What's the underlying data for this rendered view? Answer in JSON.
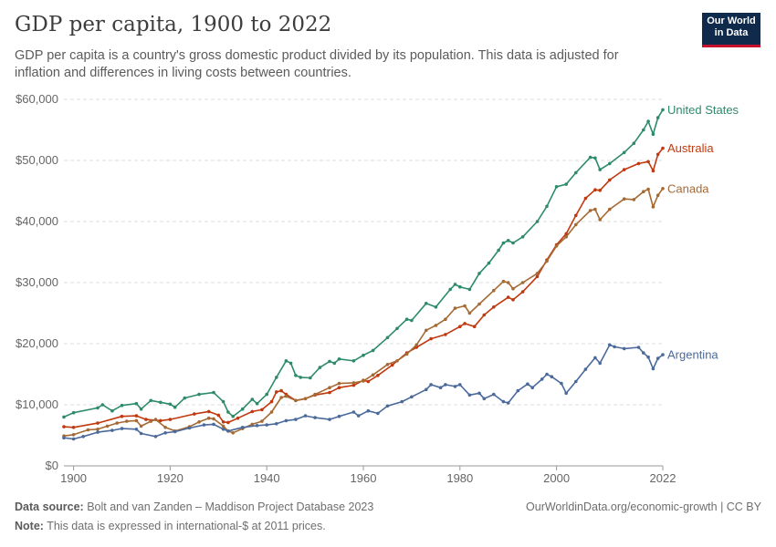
{
  "header": {
    "title": "GDP per capita, 1900 to 2022",
    "subtitle": "GDP per capita is a country's gross domestic product divided by its population. This data is adjusted for inflation and differences in living costs between countries."
  },
  "logo": {
    "line1": "Our World",
    "line2": "in Data"
  },
  "footer": {
    "source_label": "Data source:",
    "source_text": "Bolt and van Zanden – Maddison Project Database 2023",
    "note_label": "Note:",
    "note_text": "This data is expressed in international-$ at 2011 prices.",
    "right_text": "OurWorldinData.org/economic-growth | CC BY"
  },
  "chart_data": {
    "type": "line",
    "title": "GDP per capita, 1900 to 2022",
    "xlim": [
      1898,
      2022
    ],
    "ylim": [
      0,
      60000
    ],
    "x_ticks": [
      1900,
      1920,
      1940,
      1960,
      1980,
      2000,
      2022
    ],
    "y_ticks": [
      0,
      10000,
      20000,
      30000,
      40000,
      50000,
      60000
    ],
    "y_tick_labels": [
      "$0",
      "$10,000",
      "$20,000",
      "$30,000",
      "$40,000",
      "$50,000",
      "$60,000"
    ],
    "grid": "horizontal dashed",
    "legend": "labels at line ends (right)",
    "series": [
      {
        "name": "United States",
        "color": "#2e8b6a",
        "points": [
          [
            1898,
            8000
          ],
          [
            1900,
            8700
          ],
          [
            1905,
            9500
          ],
          [
            1906,
            10000
          ],
          [
            1908,
            9000
          ],
          [
            1910,
            9900
          ],
          [
            1913,
            10200
          ],
          [
            1914,
            9300
          ],
          [
            1916,
            10700
          ],
          [
            1918,
            10400
          ],
          [
            1920,
            10100
          ],
          [
            1921,
            9600
          ],
          [
            1923,
            11100
          ],
          [
            1926,
            11700
          ],
          [
            1929,
            12000
          ],
          [
            1931,
            10500
          ],
          [
            1932,
            8800
          ],
          [
            1933,
            8100
          ],
          [
            1935,
            9300
          ],
          [
            1937,
            10900
          ],
          [
            1938,
            10200
          ],
          [
            1940,
            11700
          ],
          [
            1942,
            14500
          ],
          [
            1944,
            17200
          ],
          [
            1945,
            16800
          ],
          [
            1946,
            14800
          ],
          [
            1947,
            14500
          ],
          [
            1949,
            14400
          ],
          [
            1951,
            16100
          ],
          [
            1953,
            17100
          ],
          [
            1954,
            16800
          ],
          [
            1955,
            17500
          ],
          [
            1958,
            17200
          ],
          [
            1960,
            18100
          ],
          [
            1962,
            18900
          ],
          [
            1965,
            21000
          ],
          [
            1967,
            22500
          ],
          [
            1969,
            24000
          ],
          [
            1970,
            23800
          ],
          [
            1973,
            26600
          ],
          [
            1975,
            26000
          ],
          [
            1978,
            28900
          ],
          [
            1979,
            29700
          ],
          [
            1980,
            29300
          ],
          [
            1982,
            28900
          ],
          [
            1984,
            31500
          ],
          [
            1986,
            33200
          ],
          [
            1988,
            35300
          ],
          [
            1989,
            36500
          ],
          [
            1990,
            36900
          ],
          [
            1991,
            36500
          ],
          [
            1993,
            37500
          ],
          [
            1996,
            40000
          ],
          [
            1998,
            42500
          ],
          [
            2000,
            45700
          ],
          [
            2002,
            46100
          ],
          [
            2004,
            48000
          ],
          [
            2007,
            50500
          ],
          [
            2008,
            50400
          ],
          [
            2009,
            48500
          ],
          [
            2011,
            49500
          ],
          [
            2014,
            51300
          ],
          [
            2016,
            52800
          ],
          [
            2018,
            55000
          ],
          [
            2019,
            56400
          ],
          [
            2020,
            54300
          ],
          [
            2021,
            57000
          ],
          [
            2022,
            58300
          ]
        ]
      },
      {
        "name": "Australia",
        "color": "#c0390f",
        "points": [
          [
            1898,
            6400
          ],
          [
            1900,
            6300
          ],
          [
            1905,
            7000
          ],
          [
            1910,
            8100
          ],
          [
            1913,
            8200
          ],
          [
            1915,
            7600
          ],
          [
            1918,
            7400
          ],
          [
            1920,
            7600
          ],
          [
            1925,
            8500
          ],
          [
            1928,
            8900
          ],
          [
            1930,
            8300
          ],
          [
            1931,
            7200
          ],
          [
            1932,
            7100
          ],
          [
            1934,
            7800
          ],
          [
            1937,
            8900
          ],
          [
            1939,
            9200
          ],
          [
            1941,
            10500
          ],
          [
            1942,
            12100
          ],
          [
            1943,
            12300
          ],
          [
            1944,
            11700
          ],
          [
            1946,
            10700
          ],
          [
            1948,
            11000
          ],
          [
            1950,
            11600
          ],
          [
            1953,
            12000
          ],
          [
            1955,
            12800
          ],
          [
            1958,
            13200
          ],
          [
            1960,
            14000
          ],
          [
            1961,
            13800
          ],
          [
            1963,
            14800
          ],
          [
            1966,
            16500
          ],
          [
            1969,
            18500
          ],
          [
            1971,
            19400
          ],
          [
            1974,
            20800
          ],
          [
            1977,
            21500
          ],
          [
            1980,
            22800
          ],
          [
            1981,
            23300
          ],
          [
            1983,
            22800
          ],
          [
            1985,
            24700
          ],
          [
            1987,
            26000
          ],
          [
            1990,
            27600
          ],
          [
            1991,
            27200
          ],
          [
            1993,
            28500
          ],
          [
            1996,
            31000
          ],
          [
            1998,
            33700
          ],
          [
            2000,
            36200
          ],
          [
            2002,
            38000
          ],
          [
            2004,
            41000
          ],
          [
            2006,
            43800
          ],
          [
            2008,
            45200
          ],
          [
            2009,
            45100
          ],
          [
            2011,
            46800
          ],
          [
            2014,
            48500
          ],
          [
            2017,
            49500
          ],
          [
            2019,
            49800
          ],
          [
            2020,
            48300
          ],
          [
            2021,
            51000
          ],
          [
            2022,
            52000
          ]
        ]
      },
      {
        "name": "Canada",
        "color": "#a56a34",
        "points": [
          [
            1898,
            4900
          ],
          [
            1900,
            5100
          ],
          [
            1903,
            5900
          ],
          [
            1905,
            6000
          ],
          [
            1907,
            6500
          ],
          [
            1909,
            7000
          ],
          [
            1911,
            7300
          ],
          [
            1913,
            7400
          ],
          [
            1914,
            6500
          ],
          [
            1916,
            7300
          ],
          [
            1917,
            7600
          ],
          [
            1919,
            6300
          ],
          [
            1921,
            5700
          ],
          [
            1924,
            6400
          ],
          [
            1926,
            7200
          ],
          [
            1928,
            7800
          ],
          [
            1929,
            7700
          ],
          [
            1931,
            6500
          ],
          [
            1932,
            5700
          ],
          [
            1933,
            5400
          ],
          [
            1935,
            6100
          ],
          [
            1937,
            6800
          ],
          [
            1939,
            7300
          ],
          [
            1941,
            8800
          ],
          [
            1943,
            11200
          ],
          [
            1944,
            11400
          ],
          [
            1946,
            10700
          ],
          [
            1948,
            11000
          ],
          [
            1950,
            11700
          ],
          [
            1953,
            12800
          ],
          [
            1955,
            13500
          ],
          [
            1958,
            13600
          ],
          [
            1960,
            13900
          ],
          [
            1962,
            14900
          ],
          [
            1965,
            16600
          ],
          [
            1967,
            17200
          ],
          [
            1969,
            18300
          ],
          [
            1971,
            19800
          ],
          [
            1973,
            22200
          ],
          [
            1975,
            23000
          ],
          [
            1977,
            24000
          ],
          [
            1979,
            25800
          ],
          [
            1981,
            26200
          ],
          [
            1982,
            25000
          ],
          [
            1984,
            26500
          ],
          [
            1987,
            28700
          ],
          [
            1989,
            30200
          ],
          [
            1990,
            30000
          ],
          [
            1991,
            29000
          ],
          [
            1993,
            30000
          ],
          [
            1996,
            31500
          ],
          [
            1998,
            33500
          ],
          [
            2000,
            36000
          ],
          [
            2002,
            37500
          ],
          [
            2004,
            39500
          ],
          [
            2007,
            41800
          ],
          [
            2008,
            42000
          ],
          [
            2009,
            40300
          ],
          [
            2011,
            42000
          ],
          [
            2014,
            43700
          ],
          [
            2016,
            43600
          ],
          [
            2018,
            44900
          ],
          [
            2019,
            45300
          ],
          [
            2020,
            42400
          ],
          [
            2021,
            44300
          ],
          [
            2022,
            45400
          ]
        ]
      },
      {
        "name": "Argentina",
        "color": "#4b6a9b",
        "points": [
          [
            1898,
            4600
          ],
          [
            1900,
            4400
          ],
          [
            1902,
            4800
          ],
          [
            1905,
            5500
          ],
          [
            1908,
            5800
          ],
          [
            1910,
            6100
          ],
          [
            1913,
            6000
          ],
          [
            1914,
            5300
          ],
          [
            1917,
            4800
          ],
          [
            1919,
            5400
          ],
          [
            1921,
            5600
          ],
          [
            1924,
            6200
          ],
          [
            1927,
            6700
          ],
          [
            1929,
            6800
          ],
          [
            1931,
            6000
          ],
          [
            1932,
            5700
          ],
          [
            1935,
            6300
          ],
          [
            1938,
            6600
          ],
          [
            1940,
            6700
          ],
          [
            1942,
            6900
          ],
          [
            1944,
            7400
          ],
          [
            1946,
            7600
          ],
          [
            1948,
            8200
          ],
          [
            1950,
            7900
          ],
          [
            1953,
            7600
          ],
          [
            1955,
            8100
          ],
          [
            1958,
            8800
          ],
          [
            1959,
            8200
          ],
          [
            1961,
            9000
          ],
          [
            1963,
            8600
          ],
          [
            1965,
            9800
          ],
          [
            1968,
            10500
          ],
          [
            1970,
            11300
          ],
          [
            1973,
            12500
          ],
          [
            1974,
            13300
          ],
          [
            1976,
            12800
          ],
          [
            1977,
            13300
          ],
          [
            1979,
            13000
          ],
          [
            1980,
            13300
          ],
          [
            1982,
            11600
          ],
          [
            1984,
            11900
          ],
          [
            1985,
            11000
          ],
          [
            1987,
            11700
          ],
          [
            1989,
            10500
          ],
          [
            1990,
            10300
          ],
          [
            1992,
            12300
          ],
          [
            1994,
            13400
          ],
          [
            1995,
            12800
          ],
          [
            1997,
            14200
          ],
          [
            1998,
            15000
          ],
          [
            1999,
            14600
          ],
          [
            2001,
            13500
          ],
          [
            2002,
            11900
          ],
          [
            2004,
            13800
          ],
          [
            2006,
            15800
          ],
          [
            2008,
            17700
          ],
          [
            2009,
            16800
          ],
          [
            2011,
            19800
          ],
          [
            2012,
            19500
          ],
          [
            2014,
            19200
          ],
          [
            2017,
            19400
          ],
          [
            2018,
            18500
          ],
          [
            2019,
            17800
          ],
          [
            2020,
            15900
          ],
          [
            2021,
            17600
          ],
          [
            2022,
            18200
          ]
        ]
      }
    ]
  }
}
